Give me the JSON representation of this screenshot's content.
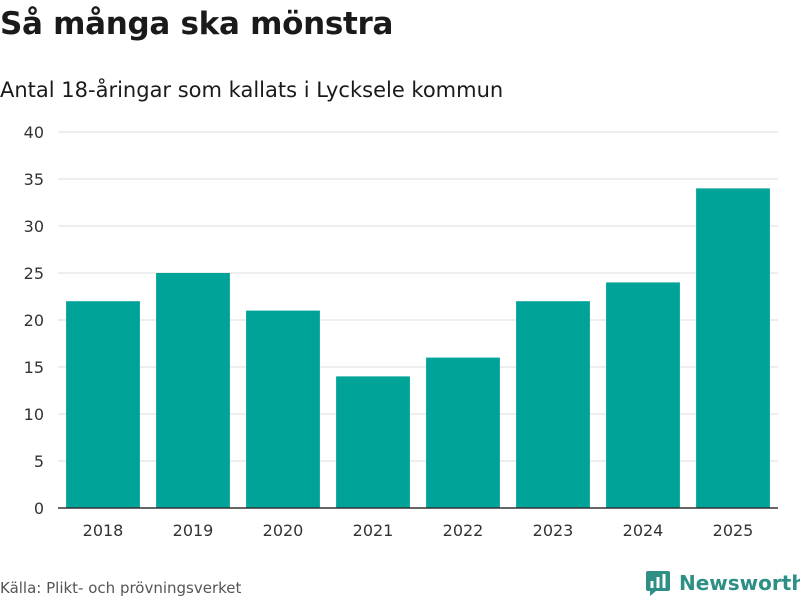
{
  "title": "Så många ska mönstra",
  "subtitle": "Antal 18-åringar som kallats i Lycksele kommun",
  "source": "Källa: Plikt- och prövningsverket",
  "brand": {
    "name": "Newsworthy",
    "color": "#2e8f85"
  },
  "colors": {
    "bar": "#00a398",
    "grid": "#dddddd",
    "axis": "#333333"
  },
  "chart_data": {
    "type": "bar",
    "title": "Så många ska mönstra",
    "subtitle": "Antal 18-åringar som kallats i Lycksele kommun",
    "xlabel": "",
    "ylabel": "",
    "categories": [
      "2018",
      "2019",
      "2020",
      "2021",
      "2022",
      "2023",
      "2024",
      "2025"
    ],
    "values": [
      22,
      25,
      21,
      14,
      16,
      22,
      24,
      34
    ],
    "ylim": [
      0,
      40
    ],
    "yticks": [
      0,
      5,
      10,
      15,
      20,
      25,
      30,
      35,
      40
    ],
    "grid": true
  }
}
